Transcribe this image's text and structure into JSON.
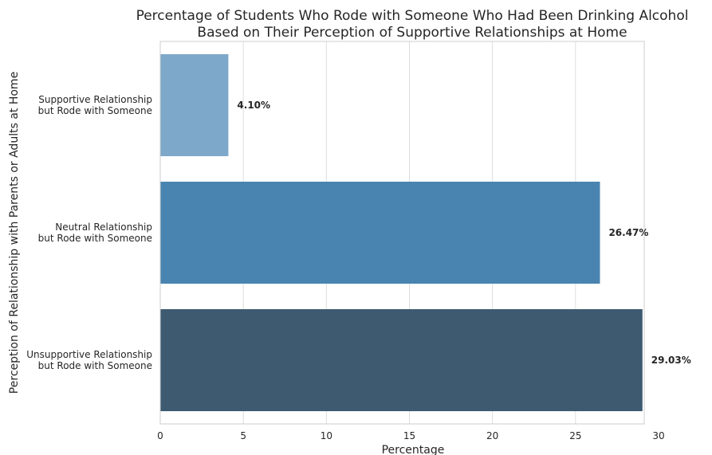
{
  "chart_data": {
    "type": "bar",
    "orientation": "horizontal",
    "title": [
      "Percentage of Students Who Rode with Someone Who Had Been Drinking Alcohol",
      "Based on Their Perception of Supportive Relationships at Home"
    ],
    "xlabel": "Percentage",
    "ylabel": "Perception of Relationship with Parents or Adults at Home",
    "xlim": [
      0,
      30.5
    ],
    "xticks": [
      0,
      5,
      10,
      15,
      20,
      25,
      30
    ],
    "grid": true,
    "categories": [
      [
        "Supportive Relationship",
        "but Rode with Someone"
      ],
      [
        "Neutral Relationship",
        "but Rode with Someone"
      ],
      [
        "Unsupportive Relationship",
        "but Rode with Someone"
      ]
    ],
    "values": [
      4.1,
      26.47,
      29.03
    ],
    "data_labels": [
      "4.10%",
      "26.47%",
      "29.03%"
    ],
    "colors": [
      "#7ea8c9",
      "#4984b0",
      "#3d5a70"
    ]
  }
}
